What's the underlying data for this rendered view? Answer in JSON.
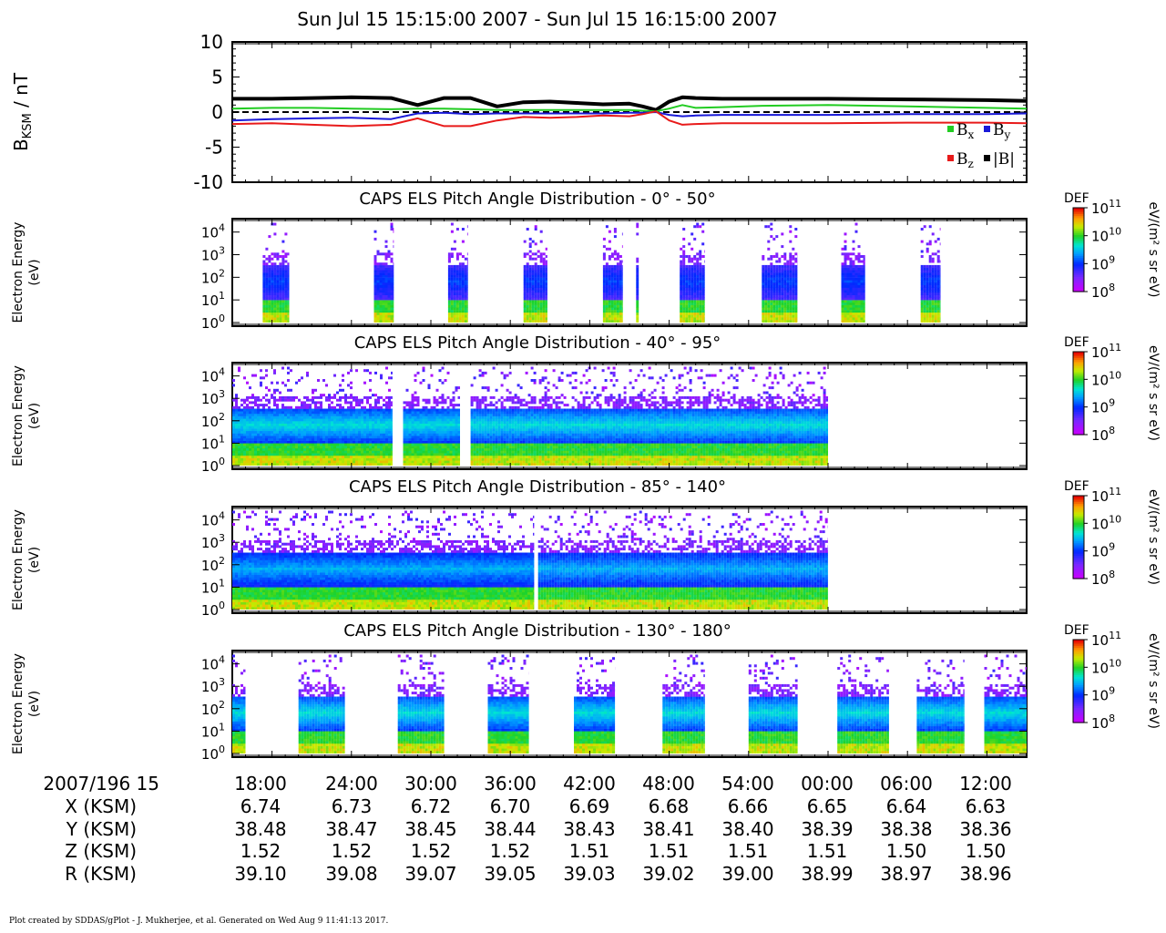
{
  "title": "Sun Jul 15 15:15:00 2007 - Sun Jul 15 16:15:00 2007",
  "footer": "Plot created by SDDAS/gPlot - J. Mukherjee, et al.  Generated on Wed Aug 9 11:41:13 2017.",
  "colors": {
    "bx": "#22cc22",
    "by": "#1a1ad8",
    "bz": "#e81a1a",
    "bmag": "#000000"
  },
  "chart_data": [
    {
      "type": "line",
      "ylabel": "B",
      "ylabel_sub": "KSM",
      "ylabel_unit": " / nT",
      "ylim": [
        -10,
        10
      ],
      "yticks": [
        10,
        5,
        0,
        -5,
        -10
      ],
      "x_minutes": [
        15,
        18,
        21,
        24,
        27,
        29,
        31,
        33,
        35,
        37,
        39,
        41,
        43,
        45,
        46,
        47,
        48,
        49,
        50,
        52,
        55,
        60,
        66,
        72,
        75
      ],
      "reference_line": {
        "y": 0,
        "style": "dashed"
      },
      "legend": [
        {
          "key": "bx",
          "label": "B",
          "sub": "x"
        },
        {
          "key": "by",
          "label": "B",
          "sub": "y"
        },
        {
          "key": "bz",
          "label": "B",
          "sub": "z"
        },
        {
          "key": "bmag",
          "label": "|B|"
        }
      ],
      "series": [
        {
          "key": "bmag",
          "values": [
            1.9,
            1.9,
            2.0,
            2.1,
            2.0,
            1.0,
            2.0,
            2.0,
            0.8,
            1.4,
            1.5,
            1.3,
            1.1,
            1.2,
            0.8,
            0.3,
            1.5,
            2.1,
            2.0,
            1.9,
            1.9,
            1.9,
            1.8,
            1.7,
            1.6
          ]
        },
        {
          "key": "bx",
          "values": [
            0.5,
            0.6,
            0.6,
            0.5,
            0.4,
            0.5,
            0.5,
            0.4,
            0.3,
            0.3,
            0.3,
            0.3,
            0.3,
            0.3,
            0.2,
            0.1,
            0.5,
            1.0,
            0.6,
            0.7,
            0.9,
            1.0,
            0.8,
            0.6,
            0.5
          ]
        },
        {
          "key": "by",
          "values": [
            -1.2,
            -1.0,
            -0.9,
            -0.8,
            -1.0,
            -0.2,
            -0.1,
            -0.3,
            -0.2,
            -0.2,
            -0.2,
            -0.2,
            -0.2,
            -0.1,
            -0.1,
            0.0,
            -0.4,
            -0.6,
            -0.5,
            -0.4,
            -0.4,
            -0.4,
            -0.3,
            -0.3,
            -0.2
          ]
        },
        {
          "key": "bz",
          "values": [
            -1.7,
            -1.6,
            -1.8,
            -2.0,
            -1.8,
            -0.9,
            -2.0,
            -2.0,
            -1.2,
            -0.7,
            -0.8,
            -0.7,
            -0.5,
            -0.6,
            -0.3,
            0.1,
            -1.2,
            -1.8,
            -1.7,
            -1.6,
            -1.6,
            -1.6,
            -1.5,
            -1.5,
            -1.6
          ]
        }
      ]
    },
    {
      "type": "heatmap",
      "title": "CAPS ELS Pitch Angle Distribution - 0° - 50°",
      "ylabel": "Electron Energy",
      "ylabel2": "(eV)",
      "yticks": [
        4,
        3,
        2,
        1,
        0
      ],
      "colorbar": {
        "label": "DEF",
        "unit": "eV/(m² s sr eV)",
        "ticks": [
          11,
          10,
          9,
          8
        ]
      },
      "segments_minutes": [
        [
          17.3,
          19.3
        ],
        [
          25.7,
          27.2
        ],
        [
          31.3,
          32.8
        ],
        [
          37.0,
          38.8
        ],
        [
          43.0,
          44.5
        ],
        [
          45.5,
          45.7
        ],
        [
          48.8,
          50.7
        ],
        [
          55.0,
          57.7
        ],
        [
          61.0,
          62.8
        ],
        [
          67.0,
          68.5
        ]
      ],
      "peak_log": 9.0
    },
    {
      "type": "heatmap",
      "title": "CAPS ELS Pitch Angle Distribution - 40° - 95°",
      "ylabel": "Electron Energy",
      "ylabel2": "(eV)",
      "yticks": [
        4,
        3,
        2,
        1,
        0
      ],
      "colorbar": {
        "label": "DEF",
        "unit": "eV/(m² s sr eV)",
        "ticks": [
          11,
          10,
          9,
          8
        ]
      },
      "segments_minutes": [
        [
          15.0,
          27.1
        ],
        [
          27.9,
          32.2
        ],
        [
          33.0,
          60.0
        ]
      ],
      "peak_log": 9.6
    },
    {
      "type": "heatmap",
      "title": "CAPS ELS Pitch Angle Distribution - 85° - 140°",
      "ylabel": "Electron Energy",
      "ylabel2": "(eV)",
      "yticks": [
        4,
        3,
        2,
        1,
        0
      ],
      "colorbar": {
        "label": "DEF",
        "unit": "eV/(m² s sr eV)",
        "ticks": [
          11,
          10,
          9,
          8
        ]
      },
      "segments_minutes": [
        [
          15.0,
          37.8
        ],
        [
          38.1,
          60.0
        ]
      ],
      "peak_log": 9.4
    },
    {
      "type": "heatmap",
      "title": "CAPS ELS Pitch Angle Distribution - 130° - 180°",
      "ylabel": "Electron Energy",
      "ylabel2": "(eV)",
      "yticks": [
        4,
        3,
        2,
        1,
        0
      ],
      "colorbar": {
        "label": "DEF",
        "unit": "eV/(m² s sr eV)",
        "ticks": [
          11,
          10,
          9,
          8
        ]
      },
      "segments_minutes": [
        [
          15.0,
          16.0
        ],
        [
          20.0,
          23.5
        ],
        [
          27.5,
          31.0
        ],
        [
          34.3,
          37.4
        ],
        [
          40.8,
          43.9
        ],
        [
          47.5,
          50.7
        ],
        [
          54.0,
          57.7
        ],
        [
          60.7,
          64.6
        ],
        [
          66.7,
          70.3
        ],
        [
          71.8,
          75.0
        ]
      ],
      "peak_log": 9.6
    }
  ],
  "ephemeris": {
    "header_label": "2007/196 15",
    "time_ticks": [
      "18:00",
      "24:00",
      "30:00",
      "36:00",
      "42:00",
      "48:00",
      "54:00",
      "00:00",
      "06:00",
      "12:00"
    ],
    "rows": [
      {
        "label": "X (KSM)",
        "values": [
          "6.74",
          "6.73",
          "6.72",
          "6.70",
          "6.69",
          "6.68",
          "6.66",
          "6.65",
          "6.64",
          "6.63"
        ]
      },
      {
        "label": "Y (KSM)",
        "values": [
          "38.48",
          "38.47",
          "38.45",
          "38.44",
          "38.43",
          "38.41",
          "38.40",
          "38.39",
          "38.38",
          "38.36"
        ]
      },
      {
        "label": "Z (KSM)",
        "values": [
          "1.52",
          "1.52",
          "1.52",
          "1.52",
          "1.51",
          "1.51",
          "1.51",
          "1.51",
          "1.50",
          "1.50"
        ]
      },
      {
        "label": "R (KSM)",
        "values": [
          "39.10",
          "39.08",
          "39.07",
          "39.05",
          "39.03",
          "39.02",
          "39.00",
          "38.99",
          "38.97",
          "38.96"
        ]
      }
    ]
  }
}
